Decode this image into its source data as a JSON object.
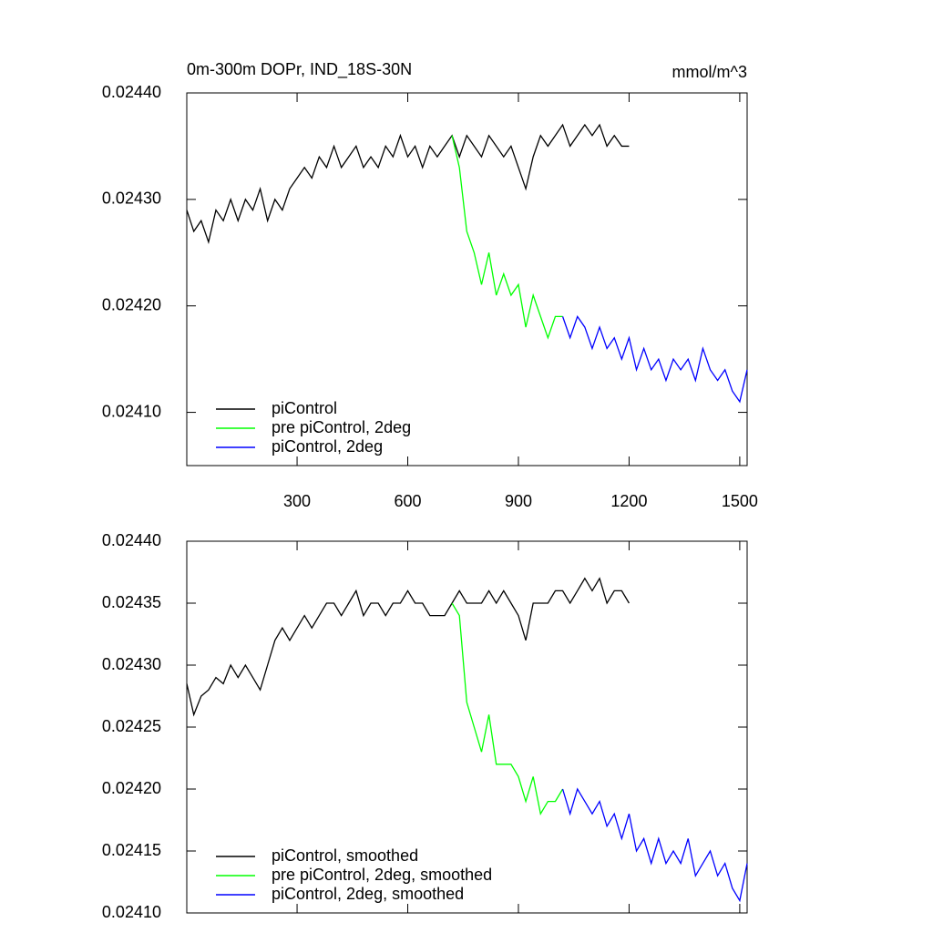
{
  "chart_data": [
    {
      "type": "line",
      "title": "0m-300m DOPr, IND_18S-30N",
      "units": "mmol/m^3",
      "xlim": [
        1,
        1520
      ],
      "xticks": [
        300,
        600,
        900,
        1200,
        1500
      ],
      "show_xtick_labels": true,
      "ylim": [
        0.02405,
        0.0244
      ],
      "yticks": [
        {
          "value": 0.0241,
          "label": "0.02410"
        },
        {
          "value": 0.0242,
          "label": "0.02420"
        },
        {
          "value": 0.0243,
          "label": "0.02430"
        },
        {
          "value": 0.0244,
          "label": "0.02440"
        }
      ],
      "legend": "lower-left",
      "series": [
        {
          "name": "piControl",
          "color": "#000000",
          "x": [
            1,
            20,
            40,
            60,
            80,
            100,
            120,
            140,
            160,
            180,
            200,
            220,
            240,
            260,
            280,
            300,
            320,
            340,
            360,
            380,
            400,
            420,
            440,
            460,
            480,
            500,
            520,
            540,
            560,
            580,
            600,
            620,
            640,
            660,
            680,
            700,
            720,
            740,
            760,
            780,
            800,
            820,
            840,
            860,
            880,
            900,
            920,
            940,
            960,
            980,
            1000,
            1020,
            1040,
            1060,
            1080,
            1100,
            1120,
            1140,
            1160,
            1180,
            1200
          ],
          "values": [
            0.02429,
            0.02427,
            0.02428,
            0.02426,
            0.02429,
            0.02428,
            0.0243,
            0.02428,
            0.0243,
            0.02429,
            0.02431,
            0.02428,
            0.0243,
            0.02429,
            0.02431,
            0.02432,
            0.02433,
            0.02432,
            0.02434,
            0.02433,
            0.02435,
            0.02433,
            0.02434,
            0.02435,
            0.02433,
            0.02434,
            0.02433,
            0.02435,
            0.02434,
            0.02436,
            0.02434,
            0.02435,
            0.02433,
            0.02435,
            0.02434,
            0.02435,
            0.02436,
            0.02434,
            0.02436,
            0.02435,
            0.02434,
            0.02436,
            0.02435,
            0.02434,
            0.02435,
            0.02433,
            0.02431,
            0.02434,
            0.02436,
            0.02435,
            0.02436,
            0.02437,
            0.02435,
            0.02436,
            0.02437,
            0.02436,
            0.02437,
            0.02435,
            0.02436,
            0.02435,
            0.02435
          ]
        },
        {
          "name": "pre piControl, 2deg",
          "color": "#00ff00",
          "x": [
            720,
            740,
            760,
            780,
            800,
            820,
            840,
            860,
            880,
            900,
            920,
            940,
            960,
            980,
            1000,
            1020
          ],
          "values": [
            0.02436,
            0.02433,
            0.02427,
            0.02425,
            0.02422,
            0.02425,
            0.02421,
            0.02423,
            0.02421,
            0.02422,
            0.02418,
            0.02421,
            0.02419,
            0.02417,
            0.02419,
            0.02419
          ]
        },
        {
          "name": "piControl, 2deg",
          "color": "#0000ff",
          "x": [
            1020,
            1040,
            1060,
            1080,
            1100,
            1120,
            1140,
            1160,
            1180,
            1200,
            1220,
            1240,
            1260,
            1280,
            1300,
            1320,
            1340,
            1360,
            1380,
            1400,
            1420,
            1440,
            1460,
            1480,
            1500,
            1520
          ],
          "values": [
            0.02419,
            0.02417,
            0.02419,
            0.02418,
            0.02416,
            0.02418,
            0.02416,
            0.02417,
            0.02415,
            0.02417,
            0.02414,
            0.02416,
            0.02414,
            0.02415,
            0.02413,
            0.02415,
            0.02414,
            0.02415,
            0.02413,
            0.02416,
            0.02414,
            0.02413,
            0.02414,
            0.02412,
            0.02411,
            0.02414
          ]
        }
      ]
    },
    {
      "type": "line",
      "xlim": [
        1,
        1520
      ],
      "xticks": [
        300,
        600,
        900,
        1200,
        1500
      ],
      "show_xtick_labels": false,
      "ylim": [
        0.0241,
        0.0244
      ],
      "yticks": [
        {
          "value": 0.0241,
          "label": "0.02410"
        },
        0.02415,
        {
          "value": 0.0242,
          "label": "0.02420"
        },
        0.02425,
        {
          "value": 0.0243,
          "label": "0.02430"
        },
        0.02435,
        {
          "value": 0.0244,
          "label": "0.02440"
        }
      ],
      "legend": "lower-left",
      "series": [
        {
          "name": "piControl, smoothed",
          "color": "#000000",
          "x": [
            1,
            20,
            40,
            60,
            80,
            100,
            120,
            140,
            160,
            180,
            200,
            220,
            240,
            260,
            280,
            300,
            320,
            340,
            360,
            380,
            400,
            420,
            440,
            460,
            480,
            500,
            520,
            540,
            560,
            580,
            600,
            620,
            640,
            660,
            680,
            700,
            720,
            740,
            760,
            780,
            800,
            820,
            840,
            860,
            880,
            900,
            920,
            940,
            960,
            980,
            1000,
            1020,
            1040,
            1060,
            1080,
            1100,
            1120,
            1140,
            1160,
            1180,
            1200
          ],
          "values": [
            0.024285,
            0.02426,
            0.024275,
            0.02428,
            0.02429,
            0.024285,
            0.0243,
            0.02429,
            0.0243,
            0.02429,
            0.02428,
            0.0243,
            0.02432,
            0.02433,
            0.02432,
            0.02433,
            0.02434,
            0.02433,
            0.02434,
            0.02435,
            0.02435,
            0.02434,
            0.02435,
            0.02436,
            0.02434,
            0.02435,
            0.02435,
            0.02434,
            0.02435,
            0.02435,
            0.02436,
            0.02435,
            0.02435,
            0.02434,
            0.02434,
            0.02434,
            0.02435,
            0.02436,
            0.02435,
            0.02435,
            0.02435,
            0.02436,
            0.02435,
            0.02436,
            0.02435,
            0.02434,
            0.02432,
            0.02435,
            0.02435,
            0.02435,
            0.02436,
            0.02436,
            0.02435,
            0.02436,
            0.02437,
            0.02436,
            0.02437,
            0.02435,
            0.02436,
            0.02436,
            0.02435
          ]
        },
        {
          "name": "pre piControl, 2deg, smoothed",
          "color": "#00ff00",
          "x": [
            720,
            740,
            760,
            780,
            800,
            820,
            840,
            860,
            880,
            900,
            920,
            940,
            960,
            980,
            1000,
            1020
          ],
          "values": [
            0.02435,
            0.02434,
            0.02427,
            0.02425,
            0.02423,
            0.02426,
            0.02422,
            0.02422,
            0.02422,
            0.02421,
            0.02419,
            0.02421,
            0.02418,
            0.02419,
            0.02419,
            0.0242
          ]
        },
        {
          "name": "piControl, 2deg, smoothed",
          "color": "#0000ff",
          "x": [
            1020,
            1040,
            1060,
            1080,
            1100,
            1120,
            1140,
            1160,
            1180,
            1200,
            1220,
            1240,
            1260,
            1280,
            1300,
            1320,
            1340,
            1360,
            1380,
            1400,
            1420,
            1440,
            1460,
            1480,
            1500,
            1520
          ],
          "values": [
            0.0242,
            0.02418,
            0.0242,
            0.02419,
            0.02418,
            0.02419,
            0.02417,
            0.02418,
            0.02416,
            0.02418,
            0.02415,
            0.02416,
            0.02414,
            0.02416,
            0.02414,
            0.02415,
            0.02414,
            0.02416,
            0.02413,
            0.02414,
            0.02415,
            0.02413,
            0.02414,
            0.02412,
            0.02411,
            0.02414
          ]
        }
      ]
    }
  ]
}
